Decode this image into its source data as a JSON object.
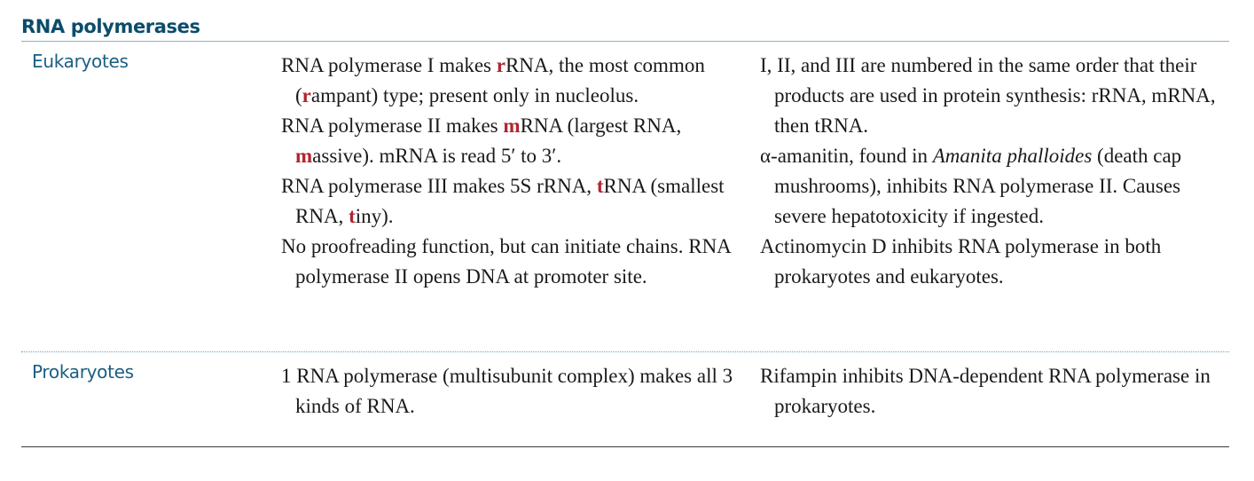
{
  "section": {
    "title": "RNA polymerases"
  },
  "rows": [
    {
      "header": "Eukaryotes",
      "mid": [
        {
          "p1": "RNA polymerase I makes ",
          "h1": "r",
          "p2": "RNA, the most common (",
          "h2": "r",
          "p3": "ampant) type; present only in nucleolus."
        },
        {
          "p1": "RNA polymerase II makes ",
          "h1": "m",
          "p2": "RNA (largest RNA, ",
          "h2": "m",
          "p3": "assive). mRNA is read 5′ to 3′."
        },
        {
          "p1": "RNA polymerase III makes 5S rRNA, ",
          "h1": "t",
          "p2": "RNA (smallest RNA, ",
          "h2": "t",
          "p3": "iny)."
        },
        {
          "text": "No proofreading function, but can initiate chains. RNA polymerase II opens DNA at promoter site."
        }
      ],
      "right": [
        {
          "text": "I, II, and III are numbered in the same order that their products are used in protein synthesis: rRNA, mRNA, then tRNA."
        },
        {
          "pre": "α-amanitin, found in ",
          "italic": "Amanita phalloides",
          "post": " (death cap mushrooms), inhibits RNA polymerase II. Causes severe hepatotoxicity if ingested."
        },
        {
          "text": "Actinomycin D inhibits RNA polymerase in both prokaryotes and eukaryotes."
        }
      ]
    },
    {
      "header": "Prokaryotes",
      "mid": [
        {
          "text": "1 RNA polymerase (multisubunit complex) makes all 3 kinds of RNA."
        }
      ],
      "right": [
        {
          "text": "Rifampin inhibits DNA-dependent RNA polymerase in prokaryotes."
        }
      ]
    }
  ],
  "colors": {
    "title": "#0b4d6b",
    "row_header": "#1b5e82",
    "highlight": "#b0252f",
    "title_rule": "#8fb4c8",
    "row_divider": "#6f9fb8",
    "bottom_rule": "#3a3a3a"
  }
}
